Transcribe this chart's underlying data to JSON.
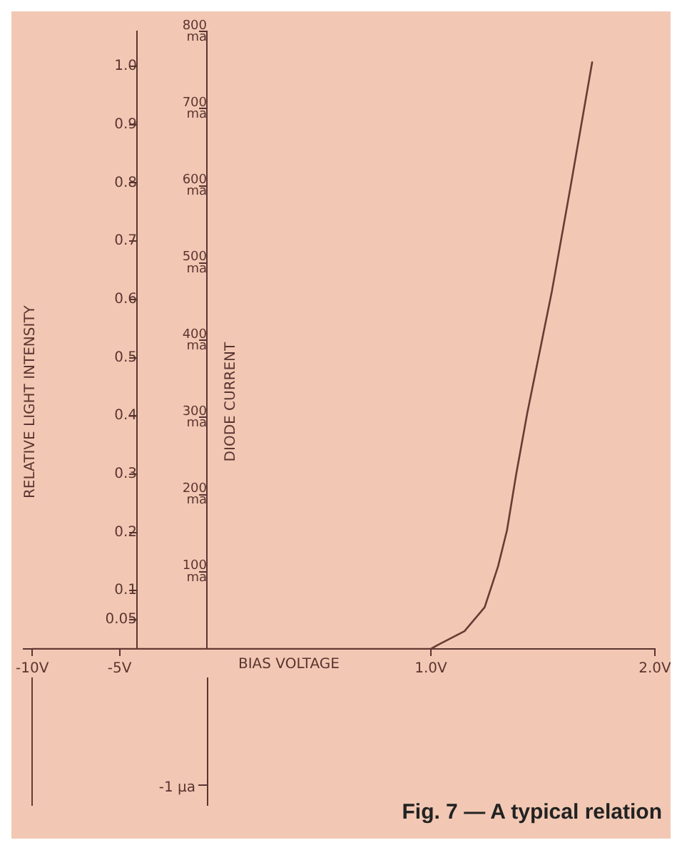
{
  "chart_data": [
    {
      "type": "line",
      "ylabel": "RELATIVE LIGHT INTENSITY",
      "y2label": "DIODE CURRENT",
      "series": [
        {
          "color": "#6b3a35",
          "axis": "y2",
          "x": [
            -10,
            0
          ],
          "values": [
            0,
            0
          ]
        }
      ],
      "xlim": [
        -10.5,
        0
      ],
      "xticks": [
        {
          "value": -10,
          "label": "-10V"
        },
        {
          "value": -5,
          "label": "-5V"
        }
      ],
      "ylim": [
        0,
        1.06
      ],
      "yticks": [
        0.05,
        0.1,
        0.2,
        0.3,
        0.4,
        0.5,
        0.6,
        0.7,
        0.8,
        0.9,
        {
          "value": 1,
          "label": "1.0"
        }
      ],
      "y2lim": [
        0,
        800
      ],
      "y2ticks": [
        {
          "value": 100,
          "label": "100 ma"
        },
        {
          "value": 200,
          "label": "200 ma"
        },
        {
          "value": 300,
          "label": "300 ma"
        },
        {
          "value": 400,
          "label": "400 ma"
        },
        {
          "value": 500,
          "label": "500 ma"
        },
        {
          "value": 600,
          "label": "600 ma"
        },
        {
          "value": 700,
          "label": "700 ma"
        },
        {
          "value": 800,
          "label": "800 ma"
        }
      ],
      "grid": false,
      "legend": false,
      "marker": "none",
      "line_style": "solid"
    },
    {
      "type": "line",
      "xlabel": "BIAS VOLTAGE",
      "annotations": [
        "Fig. 7 — A typical relation"
      ],
      "series": [
        {
          "color": "#6b3a35",
          "axis": "y2",
          "x": [
            0,
            1.0,
            1.03,
            1.15,
            1.24,
            1.3,
            1.34,
            1.38,
            1.43,
            1.54,
            1.62,
            1.72
          ],
          "values": [
            0,
            0,
            5,
            23,
            54,
            107,
            154,
            225,
            305,
            463,
            593,
            760
          ]
        }
      ],
      "xlim": [
        0,
        2.0
      ],
      "xticks": [
        {
          "value": 1,
          "label": "1.0V"
        },
        {
          "value": 2,
          "label": "2.0V"
        }
      ],
      "y2lim": [
        0,
        800
      ],
      "tick_labels": "x",
      "grid": false,
      "legend": false,
      "marker": "none",
      "line_style": "solid"
    },
    {
      "type": "other",
      "annotations": [
        "-1 μa"
      ]
    }
  ]
}
